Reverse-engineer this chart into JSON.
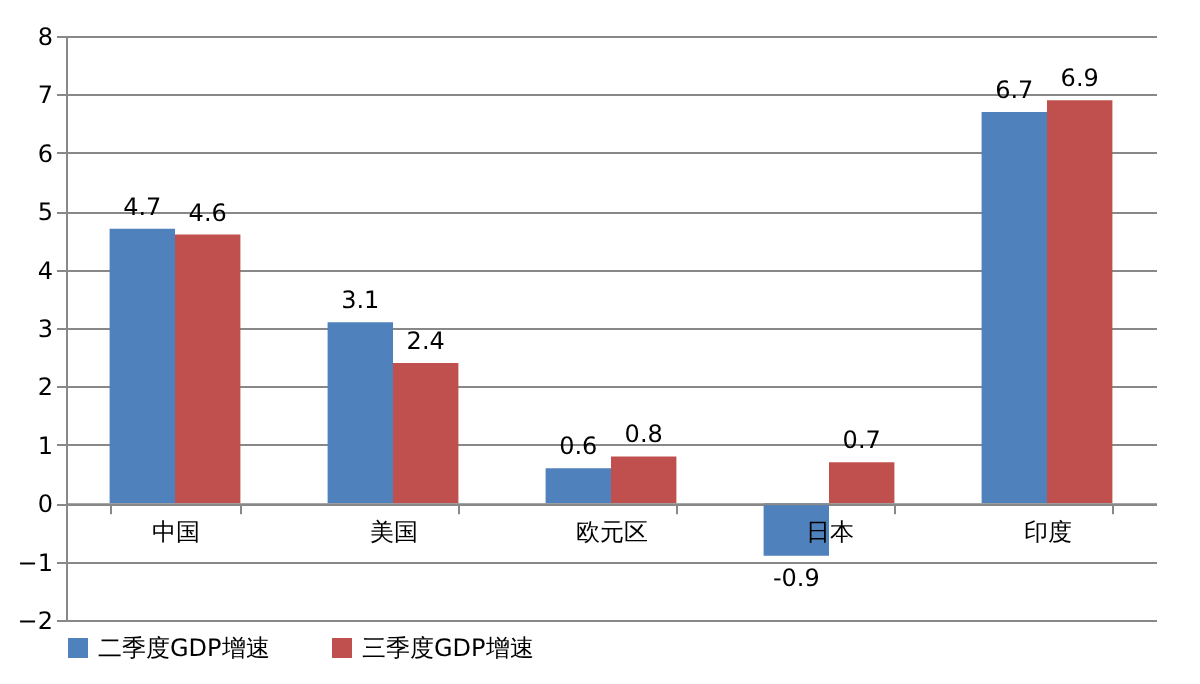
{
  "chart_data": {
    "type": "bar",
    "categories": [
      "中国",
      "美国",
      "欧元区",
      "日本",
      "印度"
    ],
    "series": [
      {
        "name": "二季度GDP增速",
        "color": "#4f81bd",
        "values": [
          4.7,
          3.1,
          0.6,
          -0.9,
          6.7
        ]
      },
      {
        "name": "三季度GDP增速",
        "color": "#c0504d",
        "values": [
          4.6,
          2.4,
          0.8,
          0.7,
          6.9
        ]
      }
    ],
    "ylim": [
      -2,
      8
    ],
    "yticks": [
      -2,
      -1,
      0,
      1,
      2,
      3,
      4,
      5,
      6,
      7,
      8
    ],
    "grid": "y",
    "legend": "bottom",
    "data_labels": true
  }
}
